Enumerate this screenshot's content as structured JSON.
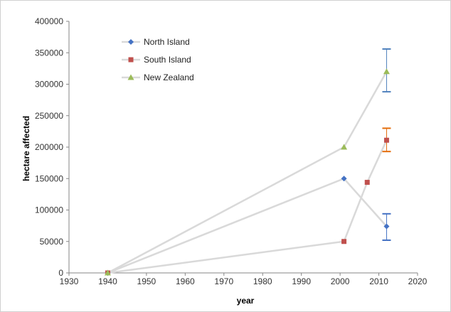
{
  "chart_data": {
    "type": "line",
    "title": "",
    "xlabel": "year",
    "ylabel": "hectare affected",
    "xlim": [
      1930,
      2020
    ],
    "ylim": [
      0,
      400000
    ],
    "xticks": [
      "1930",
      "1940",
      "1950",
      "1960",
      "1970",
      "1980",
      "1990",
      "2000",
      "2010",
      "2020"
    ],
    "yticks": [
      "0",
      "50000",
      "100000",
      "150000",
      "200000",
      "250000",
      "300000",
      "350000",
      "400000"
    ],
    "grid": false,
    "legend_position": "top-left",
    "line_color": "#d9d9d9",
    "series": [
      {
        "name": "North Island",
        "marker": "diamond",
        "color": "#4472c4",
        "points": [
          {
            "x": 1940,
            "y": 0
          },
          {
            "x": 2001,
            "y": 150000
          },
          {
            "x": 2012,
            "y": 74000,
            "err_low": 52000,
            "err_high": 94000,
            "err_color": "#4472c4"
          }
        ]
      },
      {
        "name": "South Island",
        "marker": "square",
        "color": "#c0504d",
        "points": [
          {
            "x": 1940,
            "y": 0
          },
          {
            "x": 2001,
            "y": 50000
          },
          {
            "x": 2007,
            "y": 144000
          },
          {
            "x": 2012,
            "y": 211000,
            "err_low": 193000,
            "err_high": 230000,
            "err_color": "#e46c0a"
          }
        ]
      },
      {
        "name": "New Zealand",
        "marker": "triangle",
        "color": "#9bbb59",
        "points": [
          {
            "x": 1940,
            "y": 0
          },
          {
            "x": 2001,
            "y": 200000
          },
          {
            "x": 2012,
            "y": 320000,
            "err_low": 288000,
            "err_high": 356000,
            "err_color": "#4f81bd"
          }
        ]
      }
    ]
  }
}
